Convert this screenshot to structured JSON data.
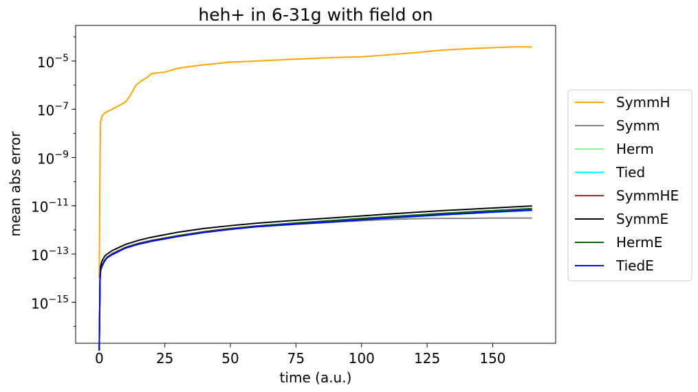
{
  "chart_data": {
    "type": "line",
    "title": "heh+ in 6-31g with field on",
    "xlabel": "time (a.u.)",
    "ylabel": "mean abs error",
    "x_scale": "linear",
    "y_scale": "log",
    "xlim": [
      -9,
      174
    ],
    "ylim": [
      2e-17,
      0.0003
    ],
    "xticks": [
      0,
      25,
      50,
      75,
      100,
      125,
      150
    ],
    "yticks": [
      {
        "exp": -15,
        "label": "10",
        "sup": "−15"
      },
      {
        "exp": -13,
        "label": "10",
        "sup": "−13"
      },
      {
        "exp": -11,
        "label": "10",
        "sup": "−11"
      },
      {
        "exp": -9,
        "label": "10",
        "sup": "−9"
      },
      {
        "exp": -7,
        "label": "10",
        "sup": "−7"
      },
      {
        "exp": -5,
        "label": "10",
        "sup": "−5"
      }
    ],
    "legend": "right-outside",
    "grid": false,
    "series": [
      {
        "name": "SymmH",
        "color": "#ffa500",
        "x": [
          0,
          0.3,
          0.5,
          1,
          2,
          3,
          5,
          8,
          10,
          12,
          14,
          16,
          18,
          20,
          25,
          30,
          35,
          40,
          50,
          60,
          75,
          90,
          100,
          110,
          120,
          130,
          140,
          150,
          160,
          165
        ],
        "y": [
          1e-14,
          1e-09,
          3e-08,
          5e-08,
          7e-08,
          8e-08,
          1e-07,
          1.5e-07,
          2e-07,
          4e-07,
          1e-06,
          1.5e-06,
          2e-06,
          3e-06,
          3.5e-06,
          5e-06,
          6e-06,
          7e-06,
          9e-06,
          1e-05,
          1.2e-05,
          1.4e-05,
          1.5e-05,
          1.8e-05,
          2.2e-05,
          2.8e-05,
          3.2e-05,
          3.6e-05,
          3.9e-05,
          3.8e-05
        ]
      },
      {
        "name": "Symm",
        "color": "#808080",
        "x": [
          0,
          0.3,
          0.5,
          1,
          2,
          3,
          5,
          10,
          15,
          20,
          30,
          40,
          50,
          60,
          75,
          90,
          100,
          110,
          120,
          130,
          140,
          150,
          160,
          165
        ],
        "y": [
          1e-17,
          8e-15,
          2e-14,
          3e-14,
          5e-14,
          7e-14,
          1e-13,
          1.8e-13,
          2.6e-13,
          3.5e-13,
          5.5e-13,
          8e-13,
          1.1e-12,
          1.35e-12,
          1.7e-12,
          2.1e-12,
          2.4e-12,
          2.7e-12,
          2.9e-12,
          3e-12,
          3e-12,
          3.1e-12,
          3.1e-12,
          3.1e-12
        ]
      },
      {
        "name": "Herm",
        "color": "#90ee90",
        "x": [
          0,
          0.3,
          0.5,
          1,
          2,
          3,
          5,
          10,
          15,
          20,
          30,
          40,
          50,
          60,
          75,
          90,
          100,
          110,
          120,
          130,
          140,
          150,
          160,
          165
        ],
        "y": [
          1e-17,
          8e-15,
          2e-14,
          3e-14,
          5e-14,
          7e-14,
          1e-13,
          1.8e-13,
          2.6e-13,
          3.5e-13,
          5.5e-13,
          8e-13,
          1.1e-12,
          1.4e-12,
          1.8e-12,
          2.3e-12,
          2.7e-12,
          3.1e-12,
          3.6e-12,
          4.1e-12,
          4.7e-12,
          5.3e-12,
          6e-12,
          6.4e-12
        ]
      },
      {
        "name": "Tied",
        "color": "#00ffff",
        "x": [
          0,
          0.3,
          0.5,
          1,
          2,
          3,
          5,
          10,
          15,
          20,
          30,
          40,
          50,
          60,
          75,
          90,
          100,
          110,
          120,
          130,
          140,
          150,
          160,
          165
        ],
        "y": [
          1e-17,
          8e-15,
          2e-14,
          3e-14,
          5e-14,
          7e-14,
          1e-13,
          1.8e-13,
          2.6e-13,
          3.5e-13,
          5.5e-13,
          8e-13,
          1.1e-12,
          1.4e-12,
          1.8e-12,
          2.3e-12,
          2.7e-12,
          3.1e-12,
          3.6e-12,
          4.1e-12,
          4.7e-12,
          5.3e-12,
          6e-12,
          6.4e-12
        ]
      },
      {
        "name": "SymmHE",
        "color": "#b22222",
        "x": [
          0,
          0.3,
          0.5,
          1,
          2,
          3,
          5,
          10,
          15,
          20,
          30,
          40,
          50,
          60,
          75,
          90,
          100,
          110,
          120,
          130,
          140,
          150,
          160,
          165
        ],
        "y": [
          1e-17,
          9e-15,
          2.2e-14,
          3.3e-14,
          5.5e-14,
          7.5e-14,
          1.05e-13,
          1.9e-13,
          2.8e-13,
          3.7e-13,
          5.8e-13,
          8.5e-13,
          1.15e-12,
          1.45e-12,
          1.9e-12,
          2.4e-12,
          2.8e-12,
          3.3e-12,
          3.8e-12,
          4.4e-12,
          5e-12,
          5.7e-12,
          6.4e-12,
          6.8e-12
        ]
      },
      {
        "name": "SymmE",
        "color": "#000000",
        "x": [
          0,
          0.3,
          0.5,
          1,
          2,
          3,
          5,
          10,
          15,
          20,
          30,
          40,
          50,
          60,
          75,
          90,
          100,
          110,
          120,
          130,
          140,
          150,
          160,
          165
        ],
        "y": [
          1e-17,
          1.2e-14,
          3e-14,
          5e-14,
          8e-14,
          1e-13,
          1.4e-13,
          2.5e-13,
          3.7e-13,
          5e-13,
          8e-13,
          1.15e-12,
          1.5e-12,
          1.9e-12,
          2.5e-12,
          3.2e-12,
          3.8e-12,
          4.5e-12,
          5.3e-12,
          6.2e-12,
          7.1e-12,
          8.1e-12,
          9.2e-12,
          9.8e-12
        ]
      },
      {
        "name": "HermE",
        "color": "#006400",
        "x": [
          0,
          0.3,
          0.5,
          1,
          2,
          3,
          5,
          10,
          15,
          20,
          30,
          40,
          50,
          60,
          75,
          90,
          100,
          110,
          120,
          130,
          140,
          150,
          160,
          165
        ],
        "y": [
          1e-17,
          9e-15,
          2.1e-14,
          3.2e-14,
          5.3e-14,
          7.3e-14,
          1.02e-13,
          1.85e-13,
          2.7e-13,
          3.6e-13,
          5.7e-13,
          8.3e-13,
          1.12e-12,
          1.45e-12,
          1.95e-12,
          2.5e-12,
          3e-12,
          3.5e-12,
          4.1e-12,
          4.8e-12,
          5.5e-12,
          6.3e-12,
          7.2e-12,
          7.7e-12
        ]
      },
      {
        "name": "TiedE",
        "color": "#0000ff",
        "x": [
          0,
          0.3,
          0.5,
          1,
          2,
          3,
          5,
          10,
          15,
          20,
          30,
          40,
          50,
          60,
          75,
          90,
          100,
          110,
          120,
          130,
          140,
          150,
          160,
          165
        ],
        "y": [
          1e-17,
          8e-15,
          2e-14,
          3e-14,
          5e-14,
          7e-14,
          9.5e-14,
          1.75e-13,
          2.55e-13,
          3.4e-13,
          5.3e-13,
          7.8e-13,
          1.05e-12,
          1.35e-12,
          1.75e-12,
          2.2e-12,
          2.6e-12,
          3.1e-12,
          3.6e-12,
          4.2e-12,
          4.8e-12,
          5.5e-12,
          6.2e-12,
          6.6e-12
        ]
      }
    ]
  }
}
